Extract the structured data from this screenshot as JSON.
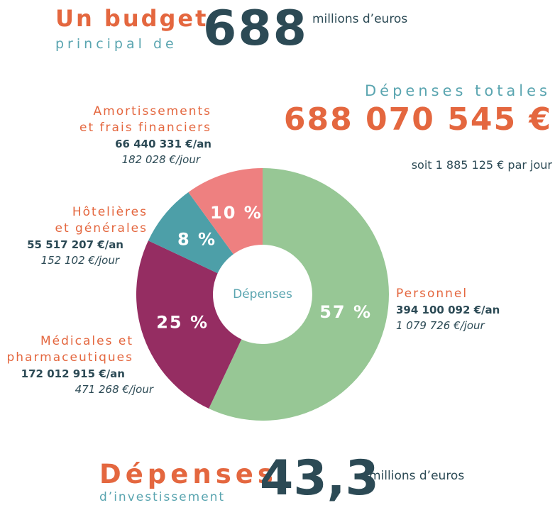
{
  "header": {
    "line1": "Un budget",
    "line2": "principal de",
    "amount": "688",
    "unit": "millions d’euros"
  },
  "totals": {
    "title": "Dépenses totales",
    "amount": "688 070 545 €",
    "per_day": "soit 1 885 125 € par jour"
  },
  "chart_data": {
    "type": "donut",
    "center_label": "Dépenses",
    "categories": [
      "Personnel",
      "Médicales et\npharmaceutiques",
      "Hôtelières\net générales",
      "Amortissements\net frais financiers"
    ],
    "values": [
      57,
      25,
      8,
      10
    ],
    "value_labels": [
      "57 %",
      "25 %",
      "8 %",
      "10 %"
    ],
    "colors": [
      "#97c795",
      "#952d62",
      "#4d9fa8",
      "#ee8080"
    ],
    "amounts_year": [
      "394 100 092 €/an",
      "172 012 915 €/an",
      "55 517 207 €/an",
      "66 440 331 €/an"
    ],
    "amounts_day": [
      "1 079 726 €/jour",
      "471 268 €/jour",
      "152 102 €/jour",
      "182 028 €/jour"
    ]
  },
  "footer": {
    "line1": "Dépenses",
    "line2": "d’investissement",
    "amount": "43,3",
    "unit": "millions d’euros"
  }
}
